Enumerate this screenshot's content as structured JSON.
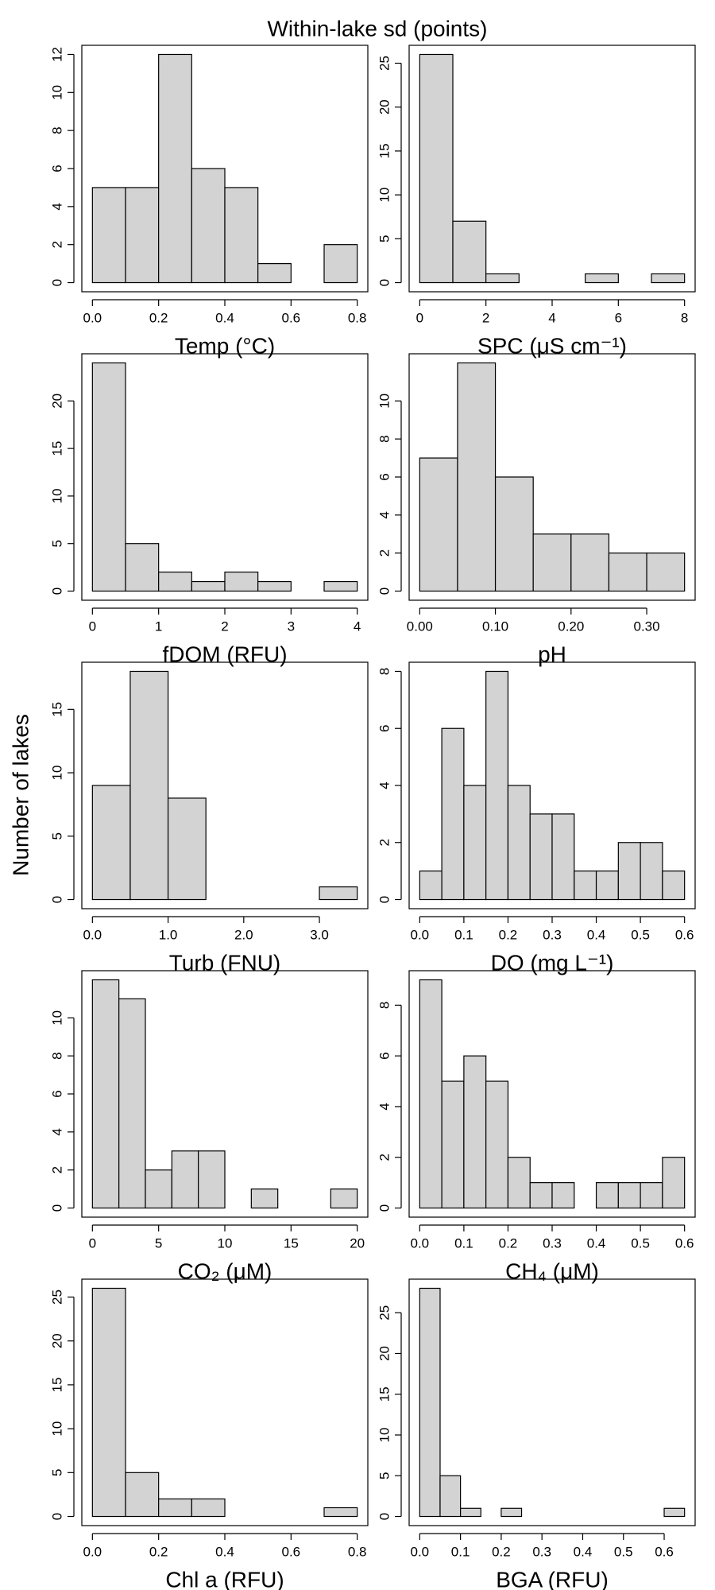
{
  "title": "Within-lake sd (points)",
  "ylabel": "Number of lakes",
  "chart_data": [
    {
      "type": "histogram",
      "xlabel": "Temp (°C)",
      "color": "#d3d3d3",
      "bins": [
        0,
        0.1,
        0.2,
        0.3,
        0.4,
        0.5,
        0.6,
        0.7,
        0.8
      ],
      "values": [
        5,
        5,
        12,
        6,
        5,
        1,
        0,
        2
      ],
      "xlim": [
        0,
        0.8
      ],
      "xticks": [
        {
          "value": 0,
          "label": "0.0"
        },
        0.2,
        0.4,
        0.6,
        0.8
      ],
      "ylim": [
        0,
        12
      ],
      "yticks": [
        0,
        2,
        4,
        6,
        8,
        10,
        12
      ]
    },
    {
      "type": "histogram",
      "xlabel": "SPC (μS cm⁻¹)",
      "color": "#d3d3d3",
      "bins": [
        0,
        1,
        2,
        3,
        4,
        5,
        6,
        7,
        8
      ],
      "values": [
        26,
        7,
        1,
        0,
        0,
        1,
        0,
        1
      ],
      "xlim": [
        0,
        8
      ],
      "xticks": [
        0,
        2,
        4,
        6,
        8
      ],
      "ylim": [
        0,
        26
      ],
      "yticks": [
        0,
        5,
        10,
        15,
        20,
        25
      ]
    },
    {
      "type": "histogram",
      "xlabel": "fDOM (RFU)",
      "color": "#d3d3d3",
      "bins": [
        0,
        0.5,
        1,
        1.5,
        2,
        2.5,
        3,
        3.5,
        4
      ],
      "values": [
        24,
        5,
        2,
        1,
        2,
        1,
        0,
        1
      ],
      "xlim": [
        0,
        4
      ],
      "xticks": [
        0,
        1,
        2,
        3,
        4
      ],
      "ylim": [
        0,
        24
      ],
      "yticks": [
        0,
        5,
        10,
        15,
        20
      ]
    },
    {
      "type": "histogram",
      "xlabel": "pH",
      "color": "#d3d3d3",
      "bins": [
        0,
        0.05,
        0.1,
        0.15,
        0.2,
        0.25,
        0.3,
        0.35
      ],
      "values": [
        7,
        12,
        6,
        3,
        3,
        2,
        2
      ],
      "xlim": [
        0,
        0.35
      ],
      "xticks": [
        {
          "value": 0,
          "label": "0.00"
        },
        {
          "value": 0.1,
          "label": "0.10"
        },
        {
          "value": 0.2,
          "label": "0.20"
        },
        {
          "value": 0.3,
          "label": "0.30"
        }
      ],
      "ylim": [
        0,
        12
      ],
      "yticks": [
        0,
        2,
        4,
        6,
        8,
        10
      ]
    },
    {
      "type": "histogram",
      "xlabel": "Turb (FNU)",
      "color": "#d3d3d3",
      "bins": [
        0,
        0.5,
        1,
        1.5,
        2,
        2.5,
        3,
        3.5
      ],
      "values": [
        9,
        18,
        8,
        0,
        0,
        0,
        1
      ],
      "xlim": [
        0,
        3.5
      ],
      "xticks": [
        {
          "value": 0,
          "label": "0.0"
        },
        {
          "value": 1,
          "label": "1.0"
        },
        {
          "value": 2,
          "label": "2.0"
        },
        {
          "value": 3,
          "label": "3.0"
        }
      ],
      "ylim": [
        0,
        18
      ],
      "yticks": [
        0,
        5,
        10,
        15
      ]
    },
    {
      "type": "histogram",
      "xlabel": "DO (mg L⁻¹)",
      "color": "#d3d3d3",
      "bins": [
        0,
        0.05,
        0.1,
        0.15,
        0.2,
        0.25,
        0.3,
        0.35,
        0.4,
        0.45,
        0.5,
        0.55,
        0.6
      ],
      "values": [
        1,
        6,
        4,
        8,
        4,
        3,
        3,
        1,
        1,
        2,
        2,
        1
      ],
      "xlim": [
        0,
        0.6
      ],
      "xticks": [
        {
          "value": 0,
          "label": "0.0"
        },
        0.1,
        0.2,
        0.3,
        0.4,
        0.5,
        0.6
      ],
      "ylim": [
        0,
        8
      ],
      "yticks": [
        0,
        2,
        4,
        6,
        8
      ]
    },
    {
      "type": "histogram",
      "xlabel": "CO₂ (μM)",
      "color": "#d3d3d3",
      "bins": [
        0,
        2,
        4,
        6,
        8,
        10,
        12,
        14,
        16,
        18,
        20
      ],
      "values": [
        12,
        11,
        2,
        3,
        3,
        0,
        1,
        0,
        0,
        1
      ],
      "xlim": [
        0,
        20
      ],
      "xticks": [
        0,
        5,
        10,
        15,
        20
      ],
      "ylim": [
        0,
        12
      ],
      "yticks": [
        0,
        2,
        4,
        6,
        8,
        10
      ]
    },
    {
      "type": "histogram",
      "xlabel": "CH₄ (μM)",
      "color": "#d3d3d3",
      "bins": [
        0,
        0.05,
        0.1,
        0.15,
        0.2,
        0.25,
        0.3,
        0.35,
        0.4,
        0.45,
        0.5,
        0.55,
        0.6
      ],
      "values": [
        9,
        5,
        6,
        5,
        2,
        1,
        1,
        0,
        1,
        1,
        1,
        2
      ],
      "xlim": [
        0,
        0.6
      ],
      "xticks": [
        {
          "value": 0,
          "label": "0.0"
        },
        0.1,
        0.2,
        0.3,
        0.4,
        0.5,
        0.6
      ],
      "ylim": [
        0,
        9
      ],
      "yticks": [
        0,
        2,
        4,
        6,
        8
      ]
    },
    {
      "type": "histogram",
      "xlabel": "Chl a (RFU)",
      "color": "#d3d3d3",
      "bins": [
        0,
        0.1,
        0.2,
        0.3,
        0.4,
        0.5,
        0.6,
        0.7,
        0.8
      ],
      "values": [
        26,
        5,
        2,
        2,
        0,
        0,
        0,
        1
      ],
      "xlim": [
        0,
        0.8
      ],
      "xticks": [
        {
          "value": 0,
          "label": "0.0"
        },
        0.2,
        0.4,
        0.6,
        0.8
      ],
      "ylim": [
        0,
        26
      ],
      "yticks": [
        0,
        5,
        10,
        15,
        20,
        25
      ]
    },
    {
      "type": "histogram",
      "xlabel": "BGA (RFU)",
      "color": "#d3d3d3",
      "bins": [
        0,
        0.05,
        0.1,
        0.15,
        0.2,
        0.25,
        0.3,
        0.35,
        0.4,
        0.45,
        0.5,
        0.55,
        0.6,
        0.65
      ],
      "values": [
        28,
        5,
        1,
        0,
        1,
        0,
        0,
        0,
        0,
        0,
        0,
        0,
        1
      ],
      "xlim": [
        0,
        0.65
      ],
      "xticks": [
        {
          "value": 0,
          "label": "0.0"
        },
        0.1,
        0.2,
        0.3,
        0.4,
        0.5,
        0.6
      ],
      "ylim": [
        0,
        28
      ],
      "yticks": [
        0,
        5,
        10,
        15,
        20,
        25
      ]
    }
  ]
}
